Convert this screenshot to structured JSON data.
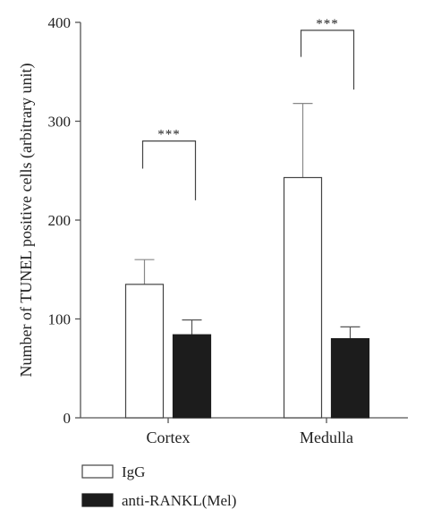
{
  "chart_data": {
    "type": "bar",
    "title": "",
    "xlabel": "",
    "ylabel": "Number of TUNEL positive cells (arbitrary unit)",
    "ylim": [
      0,
      400
    ],
    "yticks": [
      0,
      100,
      200,
      300,
      400
    ],
    "categories": [
      "Cortex",
      "Medulla"
    ],
    "series": [
      {
        "name": "IgG",
        "values": [
          135,
          243
        ],
        "errors": [
          25,
          75
        ],
        "color": "#ffffff"
      },
      {
        "name": "anti-RANKL(Mel)",
        "values": [
          84,
          80
        ],
        "errors": [
          15,
          12
        ],
        "color": "#1c1c1c"
      }
    ],
    "significance": [
      {
        "category": "Cortex",
        "label": "***",
        "left_level": 252,
        "right_level": 220,
        "top": 280
      },
      {
        "category": "Medulla",
        "label": "***",
        "left_level": 365,
        "right_level": 332,
        "top": 392
      }
    ],
    "legend_position": "bottom-left",
    "grid": false
  }
}
